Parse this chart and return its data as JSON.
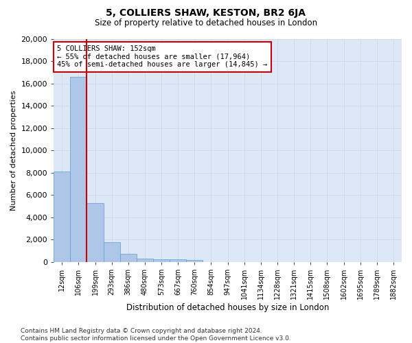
{
  "title": "5, COLLIERS SHAW, KESTON, BR2 6JA",
  "subtitle": "Size of property relative to detached houses in London",
  "xlabel": "Distribution of detached houses by size in London",
  "ylabel": "Number of detached properties",
  "bar_labels": [
    "12sqm",
    "106sqm",
    "199sqm",
    "293sqm",
    "386sqm",
    "480sqm",
    "573sqm",
    "667sqm",
    "760sqm",
    "854sqm",
    "947sqm",
    "1041sqm",
    "1134sqm",
    "1228sqm",
    "1321sqm",
    "1415sqm",
    "1508sqm",
    "1602sqm",
    "1695sqm",
    "1789sqm",
    "1882sqm"
  ],
  "bar_values": [
    8100,
    16600,
    5300,
    1750,
    750,
    330,
    230,
    210,
    200,
    0,
    0,
    0,
    0,
    0,
    0,
    0,
    0,
    0,
    0,
    0,
    0
  ],
  "bar_color": "#aec6e8",
  "bar_edge_color": "#5a9fd4",
  "annotation_text": "5 COLLIERS SHAW: 152sqm\n← 55% of detached houses are smaller (17,964)\n45% of semi-detached houses are larger (14,845) →",
  "annotation_box_color": "#ffffff",
  "annotation_box_edge": "#cc0000",
  "property_line_color": "#cc0000",
  "ylim": [
    0,
    20000
  ],
  "yticks": [
    0,
    2000,
    4000,
    6000,
    8000,
    10000,
    12000,
    14000,
    16000,
    18000,
    20000
  ],
  "grid_color": "#ccd9e8",
  "background_color": "#dce8f5",
  "footer_text": "Contains HM Land Registry data © Crown copyright and database right 2024.\nContains public sector information licensed under the Open Government Licence v3.0."
}
